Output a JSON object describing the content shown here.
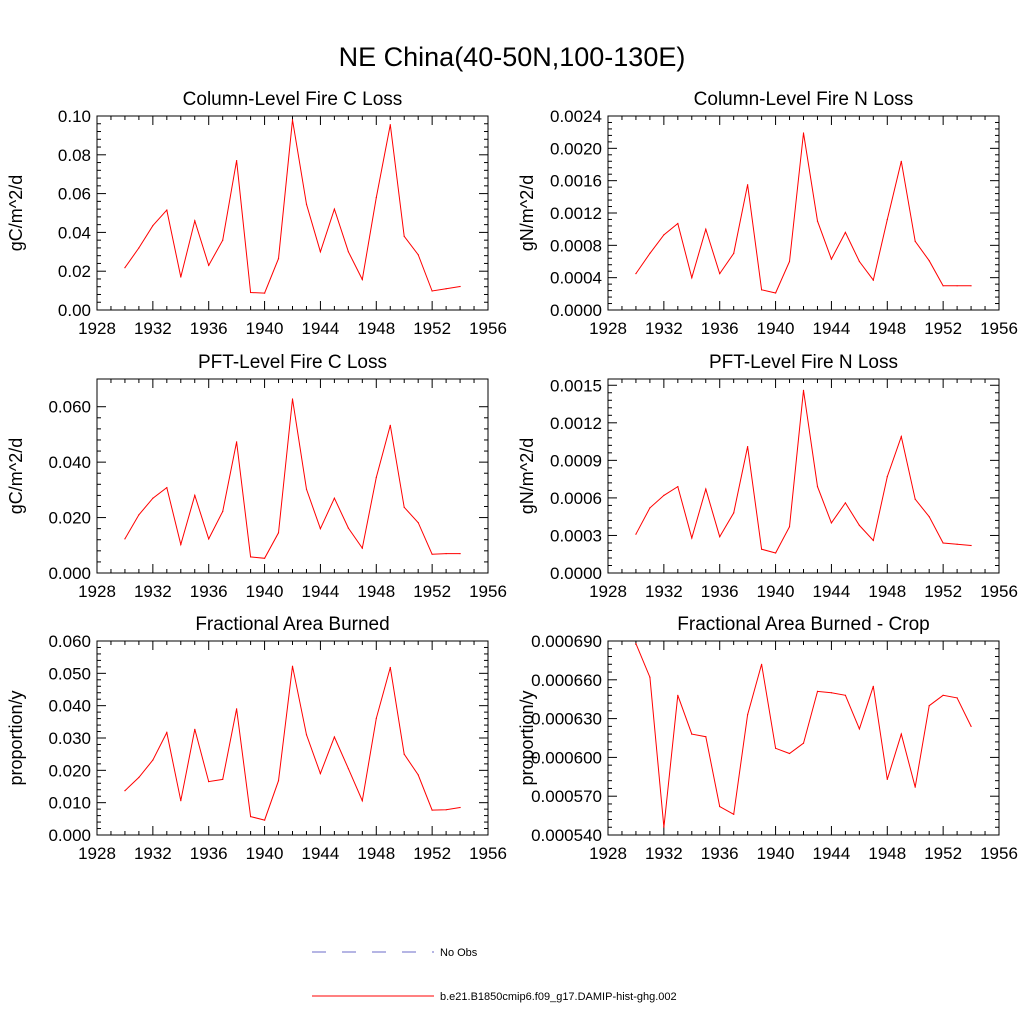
{
  "figure": {
    "title": "NE China(40-50N,100-130E)"
  },
  "legend": {
    "entries": [
      {
        "label": "No Obs",
        "color": "#6b6bc8",
        "dashed": true
      },
      {
        "label": "b.e21.B1850cmip6.f09_g17.DAMIP-hist-ghg.002",
        "color": "#ff0000",
        "dashed": false
      }
    ]
  },
  "chart_data": [
    {
      "id": "col-c",
      "type": "line",
      "title": "Column-Level Fire C Loss",
      "xlabel": "",
      "ylabel": "gC/m^2/d",
      "xlim": [
        1928,
        1956
      ],
      "ylim": [
        0,
        0.1
      ],
      "xticks": [
        1928,
        1932,
        1936,
        1940,
        1944,
        1948,
        1952,
        1956
      ],
      "yticks": [
        "0.00",
        "0.02",
        "0.04",
        "0.06",
        "0.08",
        "0.10"
      ],
      "x": [
        1930,
        1931,
        1932,
        1933,
        1934,
        1935,
        1936,
        1937,
        1938,
        1939,
        1940,
        1941,
        1942,
        1943,
        1944,
        1945,
        1946,
        1947,
        1948,
        1949,
        1950,
        1951,
        1952,
        1953,
        1954
      ],
      "series": [
        {
          "color": "#ff0000",
          "values": [
            0.0218,
            0.032,
            0.0435,
            0.0515,
            0.017,
            0.046,
            0.023,
            0.036,
            0.077,
            0.009,
            0.0087,
            0.0265,
            0.098,
            0.0545,
            0.03,
            0.052,
            0.03,
            0.0157,
            0.058,
            0.0955,
            0.038,
            0.0285,
            0.0098,
            0.011,
            0.0121
          ]
        }
      ]
    },
    {
      "id": "col-n",
      "type": "line",
      "title": "Column-Level Fire N Loss",
      "xlabel": "",
      "ylabel": "gN/m^2/d",
      "xlim": [
        1928,
        1956
      ],
      "ylim": [
        0,
        0.0024
      ],
      "xticks": [
        1928,
        1932,
        1936,
        1940,
        1944,
        1948,
        1952,
        1956
      ],
      "yticks": [
        "0.0000",
        "0.0004",
        "0.0008",
        "0.0012",
        "0.0016",
        "0.0020",
        "0.0024"
      ],
      "x": [
        1930,
        1931,
        1932,
        1933,
        1934,
        1935,
        1936,
        1937,
        1938,
        1939,
        1940,
        1941,
        1942,
        1943,
        1944,
        1945,
        1946,
        1947,
        1948,
        1949,
        1950,
        1951,
        1952,
        1953,
        1954
      ],
      "series": [
        {
          "color": "#ff0000",
          "values": [
            0.00045,
            0.0007,
            0.00093,
            0.00107,
            0.0004,
            0.001,
            0.00045,
            0.0007,
            0.00155,
            0.00025,
            0.00021,
            0.0006,
            0.00219,
            0.0011,
            0.00063,
            0.00096,
            0.0006,
            0.00037,
            0.00112,
            0.00184,
            0.00085,
            0.00061,
            0.0003,
            0.0003,
            0.0003
          ]
        }
      ]
    },
    {
      "id": "pft-c",
      "type": "line",
      "title": "PFT-Level Fire C Loss",
      "xlabel": "",
      "ylabel": "gC/m^2/d",
      "xlim": [
        1928,
        1956
      ],
      "ylim": [
        0,
        0.07
      ],
      "xticks": [
        1928,
        1932,
        1936,
        1940,
        1944,
        1948,
        1952,
        1956
      ],
      "yticks": [
        "0.000",
        "0.020",
        "0.040",
        "0.060"
      ],
      "ytick_values": [
        0,
        0.02,
        0.04,
        0.06
      ],
      "x": [
        1930,
        1931,
        1932,
        1933,
        1934,
        1935,
        1936,
        1937,
        1938,
        1939,
        1940,
        1941,
        1942,
        1943,
        1944,
        1945,
        1946,
        1947,
        1948,
        1949,
        1950,
        1951,
        1952,
        1953,
        1954
      ],
      "series": [
        {
          "color": "#ff0000",
          "values": [
            0.0123,
            0.021,
            0.027,
            0.0308,
            0.0103,
            0.028,
            0.0123,
            0.0222,
            0.0473,
            0.0058,
            0.0053,
            0.0145,
            0.0628,
            0.0302,
            0.016,
            0.027,
            0.0162,
            0.009,
            0.0345,
            0.0533,
            0.0237,
            0.0182,
            0.0068,
            0.007,
            0.007
          ]
        }
      ]
    },
    {
      "id": "pft-n",
      "type": "line",
      "title": "PFT-Level Fire N Loss",
      "xlabel": "",
      "ylabel": "gN/m^2/d",
      "xlim": [
        1928,
        1956
      ],
      "ylim": [
        0,
        0.00155
      ],
      "xticks": [
        1928,
        1932,
        1936,
        1940,
        1944,
        1948,
        1952,
        1956
      ],
      "yticks": [
        "0.0000",
        "0.0003",
        "0.0006",
        "0.0009",
        "0.0012",
        "0.0015"
      ],
      "ytick_values": [
        0,
        0.0003,
        0.0006,
        0.0009,
        0.0012,
        0.0015
      ],
      "x": [
        1930,
        1931,
        1932,
        1933,
        1934,
        1935,
        1936,
        1937,
        1938,
        1939,
        1940,
        1941,
        1942,
        1943,
        1944,
        1945,
        1946,
        1947,
        1948,
        1949,
        1950,
        1951,
        1952,
        1953,
        1954
      ],
      "series": [
        {
          "color": "#ff0000",
          "values": [
            0.00031,
            0.00052,
            0.00062,
            0.00069,
            0.00028,
            0.00067,
            0.00029,
            0.00048,
            0.00101,
            0.00019,
            0.00016,
            0.00037,
            0.00146,
            0.00069,
            0.0004,
            0.00056,
            0.00038,
            0.00026,
            0.00077,
            0.00109,
            0.00059,
            0.00045,
            0.00024,
            0.00023,
            0.00022
          ]
        }
      ]
    },
    {
      "id": "fab",
      "type": "line",
      "title": "Fractional Area Burned",
      "xlabel": "",
      "ylabel": "proportion/y",
      "xlim": [
        1928,
        1956
      ],
      "ylim": [
        0,
        0.06
      ],
      "xticks": [
        1928,
        1932,
        1936,
        1940,
        1944,
        1948,
        1952,
        1956
      ],
      "yticks": [
        "0.000",
        "0.010",
        "0.020",
        "0.030",
        "0.040",
        "0.050",
        "0.060"
      ],
      "x": [
        1930,
        1931,
        1932,
        1933,
        1934,
        1935,
        1936,
        1937,
        1938,
        1939,
        1940,
        1941,
        1942,
        1943,
        1944,
        1945,
        1946,
        1947,
        1948,
        1949,
        1950,
        1951,
        1952,
        1953,
        1954
      ],
      "series": [
        {
          "color": "#ff0000",
          "values": [
            0.0137,
            0.0178,
            0.0232,
            0.0317,
            0.0106,
            0.0327,
            0.0165,
            0.0172,
            0.039,
            0.0057,
            0.0046,
            0.0168,
            0.0522,
            0.031,
            0.019,
            0.0303,
            0.0205,
            0.0106,
            0.0361,
            0.0518,
            0.025,
            0.0186,
            0.0077,
            0.0078,
            0.0085
          ]
        }
      ]
    },
    {
      "id": "fab-crop",
      "type": "line",
      "title": "Fractional Area Burned - Crop",
      "xlabel": "",
      "ylabel": "proportion/y",
      "xlim": [
        1928,
        1956
      ],
      "ylim": [
        0.00054,
        0.00069
      ],
      "xticks": [
        1928,
        1932,
        1936,
        1940,
        1944,
        1948,
        1952,
        1956
      ],
      "yticks": [
        "0.000540",
        "0.000570",
        "0.000600",
        "0.000630",
        "0.000660",
        "0.000690"
      ],
      "ytick_values": [
        0.00054,
        0.00057,
        0.0006,
        0.00063,
        0.00066,
        0.00069
      ],
      "x": [
        1930,
        1931,
        1932,
        1933,
        1934,
        1935,
        1936,
        1937,
        1938,
        1939,
        1940,
        1941,
        1942,
        1943,
        1944,
        1945,
        1946,
        1947,
        1948,
        1949,
        1950,
        1951,
        1952,
        1953,
        1954
      ],
      "series": [
        {
          "color": "#ff0000",
          "values": [
            0.000688,
            0.000662,
            0.000546,
            0.000648,
            0.000618,
            0.000616,
            0.000562,
            0.000556,
            0.000633,
            0.000672,
            0.000607,
            0.000603,
            0.000611,
            0.000651,
            0.00065,
            0.000648,
            0.000622,
            0.000655,
            0.000583,
            0.000618,
            0.000577,
            0.00064,
            0.000648,
            0.000646,
            0.000624
          ]
        }
      ]
    }
  ]
}
